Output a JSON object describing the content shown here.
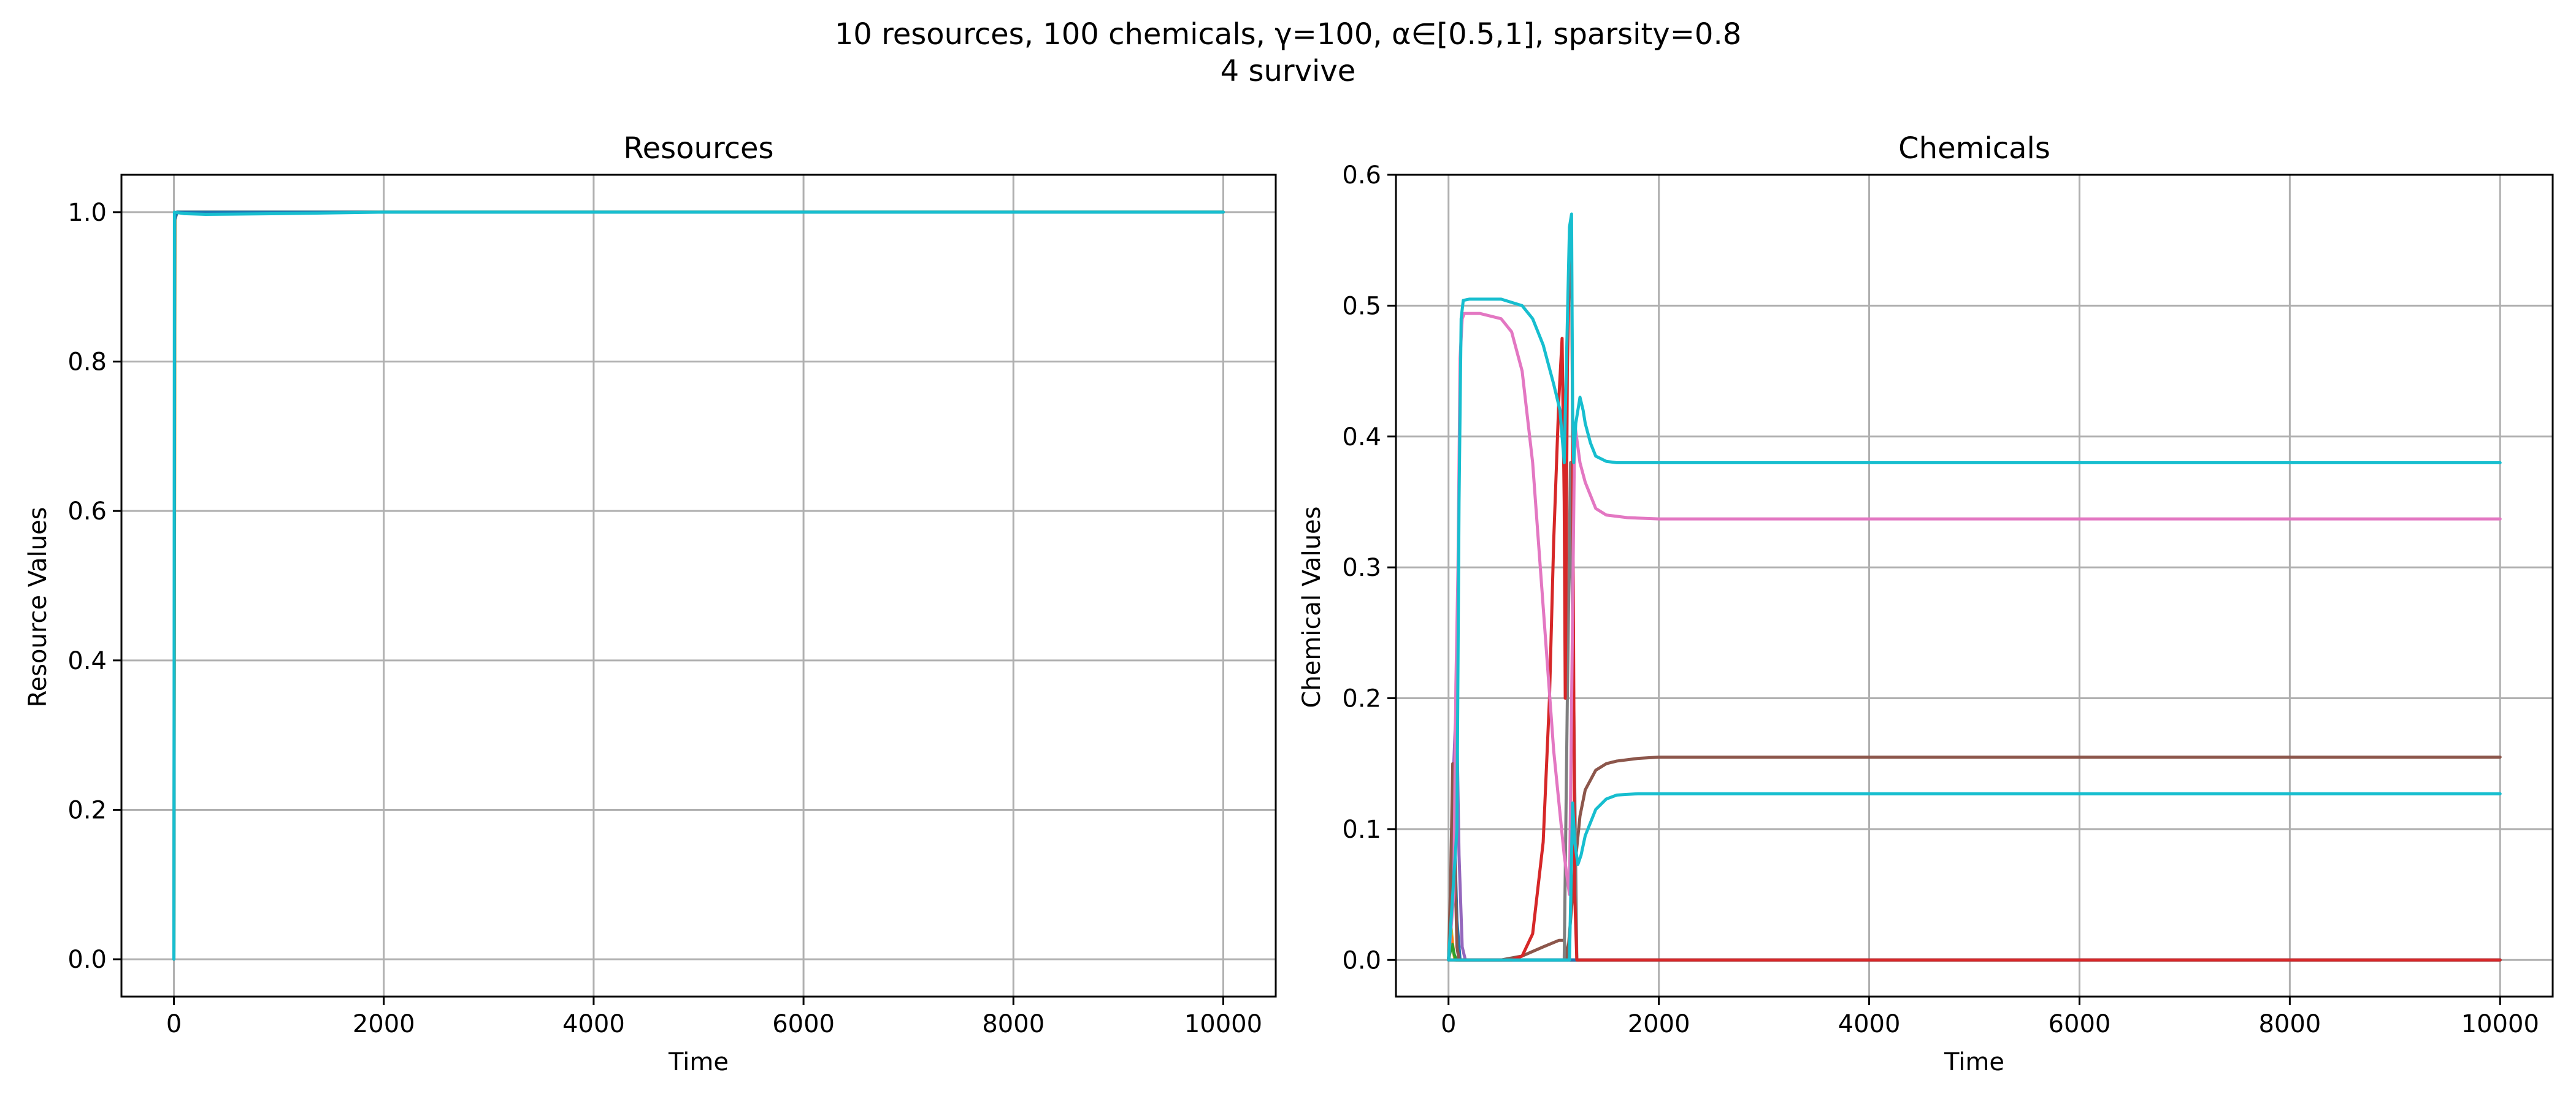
{
  "figure": {
    "suptitle_line1": "10 resources, 100 chemicals, γ=100, α∈[0.5,1], sparsity=0.8",
    "suptitle_line2": "4 survive"
  },
  "chart_data": [
    {
      "type": "line",
      "title": "Resources",
      "xlabel": "Time",
      "ylabel": "Resource Values",
      "xlim": [
        -500,
        10500
      ],
      "ylim": [
        -0.05,
        1.05
      ],
      "xticks": [
        0,
        2000,
        4000,
        6000,
        8000,
        10000
      ],
      "xtick_labels": [
        "0",
        "2000",
        "4000",
        "6000",
        "8000",
        "10000"
      ],
      "yticks": [
        0.0,
        0.2,
        0.4,
        0.6,
        0.8,
        1.0
      ],
      "ytick_labels": [
        "0.0",
        "0.2",
        "0.4",
        "0.6",
        "0.8",
        "1.0"
      ],
      "grid": true,
      "series": [
        {
          "color": "#ff7f0e",
          "x": [
            0,
            10,
            30,
            10000
          ],
          "y": [
            0.0,
            0.99,
            1.0,
            1.0
          ]
        },
        {
          "color": "#bcbd22",
          "x": [
            0,
            10,
            30,
            10000
          ],
          "y": [
            0.01,
            0.99,
            1.0,
            1.0
          ]
        },
        {
          "color": "#1f77b4",
          "x": [
            0,
            8,
            30,
            10000
          ],
          "y": [
            0.0,
            0.99,
            1.0,
            1.0
          ]
        },
        {
          "color": "#17becf",
          "x": [
            0,
            5,
            100,
            300,
            1000,
            2000,
            10000
          ],
          "y": [
            0.0,
            1.0,
            0.998,
            0.997,
            0.998,
            1.0,
            1.0
          ]
        }
      ]
    },
    {
      "type": "line",
      "title": "Chemicals",
      "xlabel": "Time",
      "ylabel": "Chemical Values",
      "xlim": [
        -500,
        10500
      ],
      "ylim": [
        -0.028,
        0.6
      ],
      "xticks": [
        0,
        2000,
        4000,
        6000,
        8000,
        10000
      ],
      "xtick_labels": [
        "0",
        "2000",
        "4000",
        "6000",
        "8000",
        "10000"
      ],
      "yticks": [
        0.0,
        0.1,
        0.2,
        0.3,
        0.4,
        0.5,
        0.6
      ],
      "ytick_labels": [
        "0.0",
        "0.1",
        "0.2",
        "0.3",
        "0.4",
        "0.5",
        "0.6"
      ],
      "grid": true,
      "series": [
        {
          "color": "#bcbd22",
          "x": [
            0,
            10,
            25,
            40,
            60,
            80,
            10000
          ],
          "y": [
            0.0,
            0.02,
            0.025,
            0.01,
            0.0,
            0.0,
            0.0
          ]
        },
        {
          "color": "#ff7f0e",
          "x": [
            0,
            15,
            30,
            50,
            70,
            10000
          ],
          "y": [
            0.0,
            0.012,
            0.018,
            0.005,
            0.0,
            0.0
          ]
        },
        {
          "color": "#2ca02c",
          "x": [
            0,
            20,
            35,
            55,
            75,
            10000
          ],
          "y": [
            0.0,
            0.008,
            0.012,
            0.004,
            0.0,
            0.0
          ]
        },
        {
          "color": "#9467bd",
          "x": [
            0,
            20,
            50,
            75,
            100,
            130,
            160,
            10000
          ],
          "y": [
            0.0,
            0.04,
            0.15,
            0.2,
            0.08,
            0.01,
            0.0,
            0.0
          ]
        },
        {
          "color": "#1f77b4",
          "x": [
            0,
            30,
            55,
            80,
            110,
            10000
          ],
          "y": [
            0.0,
            0.05,
            0.1,
            0.03,
            0.0,
            0.0
          ]
        },
        {
          "color": "#8c564b",
          "x": [
            0,
            20,
            40,
            60,
            80,
            100,
            500,
            700,
            900,
            1050,
            1100,
            1130,
            1200,
            1250,
            1300,
            1400,
            1500,
            1600,
            1800,
            2000,
            2500,
            10000
          ],
          "y": [
            0.0,
            0.06,
            0.15,
            0.08,
            0.01,
            0.0,
            0.0,
            0.003,
            0.01,
            0.015,
            0.015,
            0.0,
            0.07,
            0.11,
            0.13,
            0.145,
            0.15,
            0.152,
            0.154,
            0.155,
            0.155,
            0.155
          ]
        },
        {
          "color": "#7f7f7f",
          "x": [
            1100,
            1130,
            1160,
            1190,
            1220,
            10000
          ],
          "y": [
            0.0,
            0.2,
            0.38,
            0.2,
            0.0,
            0.0
          ]
        },
        {
          "color": "#d62728",
          "x": [
            0,
            600,
            700,
            800,
            900,
            960,
            1000,
            1050,
            1080,
            1100,
            1110,
            1130,
            1150,
            1170,
            1180,
            1200,
            1220,
            10000
          ],
          "y": [
            0.0,
            0.0,
            0.003,
            0.02,
            0.09,
            0.2,
            0.32,
            0.43,
            0.475,
            0.35,
            0.2,
            0.45,
            0.535,
            0.54,
            0.4,
            0.05,
            0.0,
            0.0
          ]
        },
        {
          "color": "#e377c2",
          "x": [
            0,
            50,
            70,
            90,
            110,
            130,
            150,
            300,
            500,
            600,
            700,
            800,
            900,
            1000,
            1100,
            1150,
            1200,
            1250,
            1300,
            1400,
            1500,
            1700,
            2000,
            10000
          ],
          "y": [
            0.0,
            0.05,
            0.21,
            0.3,
            0.46,
            0.49,
            0.494,
            0.494,
            0.49,
            0.48,
            0.45,
            0.38,
            0.27,
            0.16,
            0.08,
            0.05,
            0.41,
            0.38,
            0.365,
            0.345,
            0.34,
            0.338,
            0.337,
            0.337
          ]
        },
        {
          "color": "#17becf",
          "x": [
            0,
            80,
            100,
            120,
            140,
            200,
            500,
            700,
            800,
            900,
            1000,
            1060,
            1100,
            1150,
            1170,
            1180,
            1190,
            1210,
            1250,
            1280,
            1300,
            1350,
            1400,
            1500,
            1600,
            1800,
            2000,
            3000,
            10000
          ],
          "y": [
            0.0,
            0.1,
            0.35,
            0.49,
            0.504,
            0.505,
            0.505,
            0.5,
            0.49,
            0.47,
            0.44,
            0.42,
            0.38,
            0.56,
            0.57,
            0.42,
            0.38,
            0.41,
            0.43,
            0.42,
            0.41,
            0.395,
            0.385,
            0.381,
            0.38,
            0.38,
            0.38,
            0.38,
            0.38
          ]
        },
        {
          "color": "#17becf",
          "x": [
            0,
            1100,
            1150,
            1180,
            1200,
            1230,
            1260,
            1300,
            1400,
            1500,
            1600,
            1800,
            2000,
            10000
          ],
          "y": [
            0.0,
            0.0,
            0.0,
            0.12,
            0.09,
            0.073,
            0.08,
            0.095,
            0.115,
            0.123,
            0.126,
            0.127,
            0.127,
            0.127
          ]
        }
      ]
    }
  ]
}
